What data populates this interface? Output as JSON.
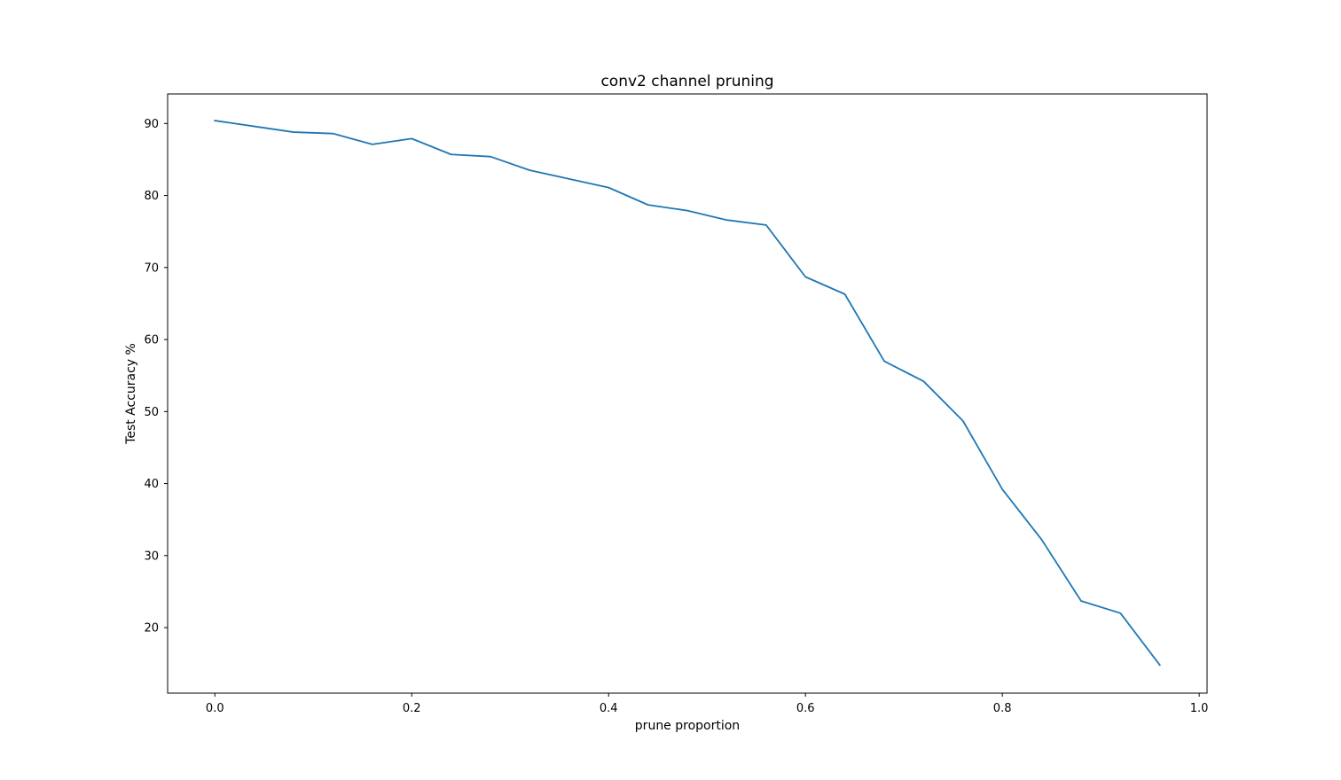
{
  "chart_data": {
    "type": "line",
    "title": "conv2 channel pruning",
    "xlabel": "prune proportion",
    "ylabel": "Test Accuracy %",
    "xlim": [
      -0.048,
      1.008
    ],
    "ylim": [
      10.9,
      94.1
    ],
    "xticks": [
      0.0,
      0.2,
      0.4,
      0.6,
      0.8,
      1.0
    ],
    "xtick_labels": [
      "0.0",
      "0.2",
      "0.4",
      "0.6",
      "0.8",
      "1.0"
    ],
    "yticks": [
      20,
      30,
      40,
      50,
      60,
      70,
      80,
      90
    ],
    "ytick_labels": [
      "20",
      "30",
      "40",
      "50",
      "60",
      "70",
      "80",
      "90"
    ],
    "grid": false,
    "line_color": "#1f77b4",
    "series": [
      {
        "x": [
          0.0,
          0.04,
          0.08,
          0.12,
          0.16,
          0.2,
          0.24,
          0.28,
          0.32,
          0.36,
          0.4,
          0.44,
          0.48,
          0.52,
          0.56,
          0.6,
          0.64,
          0.68,
          0.72,
          0.76,
          0.8,
          0.84,
          0.88,
          0.92,
          0.96
        ],
        "values": [
          90.4,
          89.6,
          88.8,
          88.6,
          87.1,
          87.9,
          85.7,
          85.4,
          83.5,
          82.3,
          81.1,
          78.7,
          77.9,
          76.6,
          75.9,
          68.7,
          66.3,
          57.0,
          54.2,
          48.7,
          39.2,
          32.2,
          23.7,
          22.0,
          14.8
        ]
      }
    ]
  }
}
